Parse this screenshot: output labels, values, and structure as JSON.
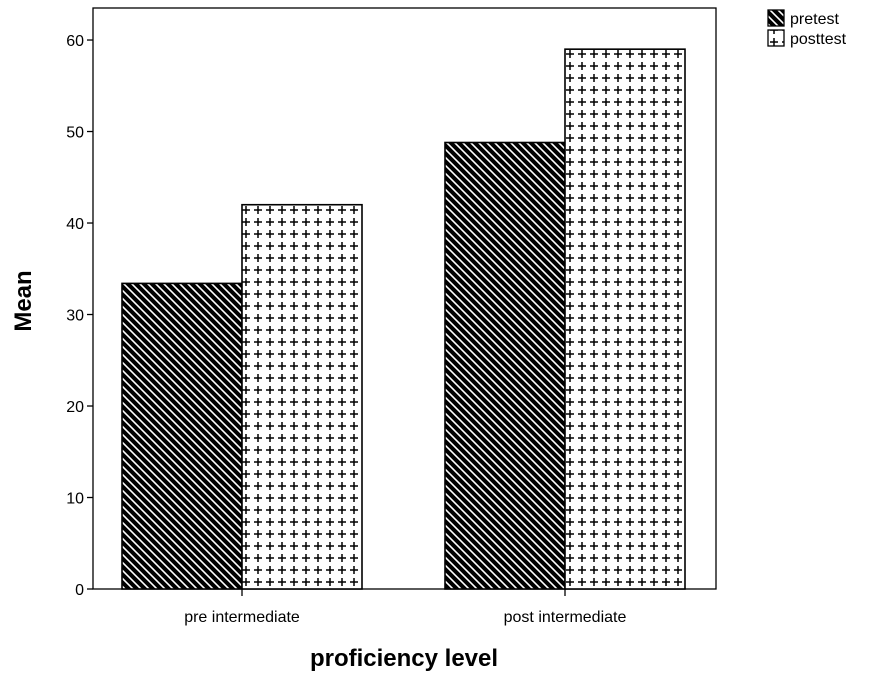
{
  "chart_data": {
    "type": "bar",
    "categories": [
      "pre intermediate",
      "post intermediate"
    ],
    "series": [
      {
        "name": "pretest",
        "values": [
          33.4,
          48.8
        ],
        "pattern": "diagonal-hatch"
      },
      {
        "name": "posttest",
        "values": [
          42.0,
          59.0
        ],
        "pattern": "plus-grid"
      }
    ],
    "title": "",
    "xlabel": "proficiency level",
    "ylabel": "Mean",
    "ylim": [
      0,
      63.5
    ],
    "yticks": [
      0,
      10,
      20,
      30,
      40,
      50,
      60
    ],
    "grid": false,
    "legend_position": "top-right",
    "colors": {
      "ink": "#000000",
      "fill": "#ffffff"
    }
  }
}
